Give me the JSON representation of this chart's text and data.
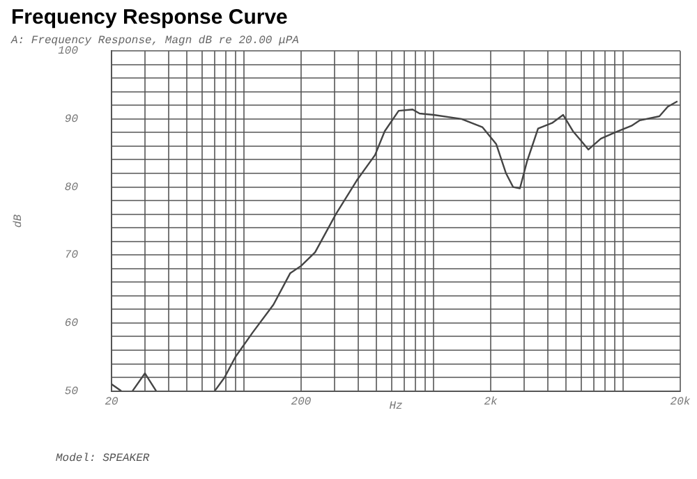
{
  "chart_data": {
    "type": "line",
    "title": "Frequency Response Curve",
    "subtitle": "A: Frequency Response, Magn dB re 20.00 μPA",
    "xlabel": "Hz",
    "ylabel": "dB",
    "annotations": [
      "Model: SPEAKER"
    ],
    "log": "x",
    "grid": true,
    "legend": false,
    "marker": "none",
    "line_style": "solid",
    "xlim": [
      20,
      20000
    ],
    "xticks": [
      20,
      {
        "value": 30,
        "label": null
      },
      {
        "value": 40,
        "label": null
      },
      {
        "value": 50,
        "label": null
      },
      {
        "value": 60,
        "label": null
      },
      {
        "value": 70,
        "label": null
      },
      {
        "value": 80,
        "label": null
      },
      {
        "value": 90,
        "label": null
      },
      {
        "value": 100,
        "label": null
      },
      200,
      {
        "value": 300,
        "label": null
      },
      {
        "value": 400,
        "label": null
      },
      {
        "value": 500,
        "label": null
      },
      {
        "value": 600,
        "label": null
      },
      {
        "value": 700,
        "label": null
      },
      {
        "value": 800,
        "label": null
      },
      {
        "value": 900,
        "label": null
      },
      {
        "value": 1000,
        "label": null
      },
      {
        "value": 2000,
        "label": "2k"
      },
      {
        "value": 3000,
        "label": null
      },
      {
        "value": 4000,
        "label": null
      },
      {
        "value": 5000,
        "label": null
      },
      {
        "value": 6000,
        "label": null
      },
      {
        "value": 7000,
        "label": null
      },
      {
        "value": 8000,
        "label": null
      },
      {
        "value": 9000,
        "label": null
      },
      {
        "value": 10000,
        "label": null
      },
      {
        "value": 20000,
        "label": "20k"
      }
    ],
    "ylim": [
      50,
      100
    ],
    "yticks": [
      50,
      {
        "value": 52,
        "label": null
      },
      {
        "value": 54,
        "label": null
      },
      {
        "value": 56,
        "label": null
      },
      {
        "value": 58,
        "label": null
      },
      60,
      {
        "value": 62,
        "label": null
      },
      {
        "value": 64,
        "label": null
      },
      {
        "value": 66,
        "label": null
      },
      {
        "value": 68,
        "label": null
      },
      70,
      {
        "value": 72,
        "label": null
      },
      {
        "value": 74,
        "label": null
      },
      {
        "value": 76,
        "label": null
      },
      {
        "value": 78,
        "label": null
      },
      80,
      {
        "value": 82,
        "label": null
      },
      {
        "value": 84,
        "label": null
      },
      {
        "value": 86,
        "label": null
      },
      {
        "value": 88,
        "label": null
      },
      90,
      {
        "value": 92,
        "label": null
      },
      {
        "value": 94,
        "label": null
      },
      {
        "value": 96,
        "label": null
      },
      {
        "value": 98,
        "label": null
      },
      100
    ],
    "series": [
      {
        "color": "#444444",
        "x": [
          20,
          22.5,
          23,
          25.8,
          30,
          34.4,
          35,
          70,
          79,
          90,
          111,
          143,
          175,
          200,
          237,
          305,
          394,
          491,
          552,
          654,
          775,
          843,
          1000,
          1403,
          1807,
          2140,
          2410,
          2624,
          2853,
          3105,
          3556,
          4215,
          4823,
          5432,
          5913,
          6548,
          7625,
          9022,
          11060,
          12240,
          15520,
          17180,
          19320
        ],
        "values": [
          51,
          50,
          null,
          50,
          52.6,
          50,
          null,
          50,
          52,
          55,
          58.6,
          62.7,
          67.3,
          68.4,
          70.4,
          76,
          81,
          84.7,
          88.2,
          91.2,
          91.4,
          90.8,
          90.6,
          90,
          88.8,
          86.3,
          82,
          80,
          79.8,
          83.7,
          88.6,
          89.4,
          90.6,
          88.2,
          87,
          85.5,
          87.1,
          88,
          89,
          89.8,
          90.4,
          91.8,
          92.6
        ]
      }
    ]
  }
}
